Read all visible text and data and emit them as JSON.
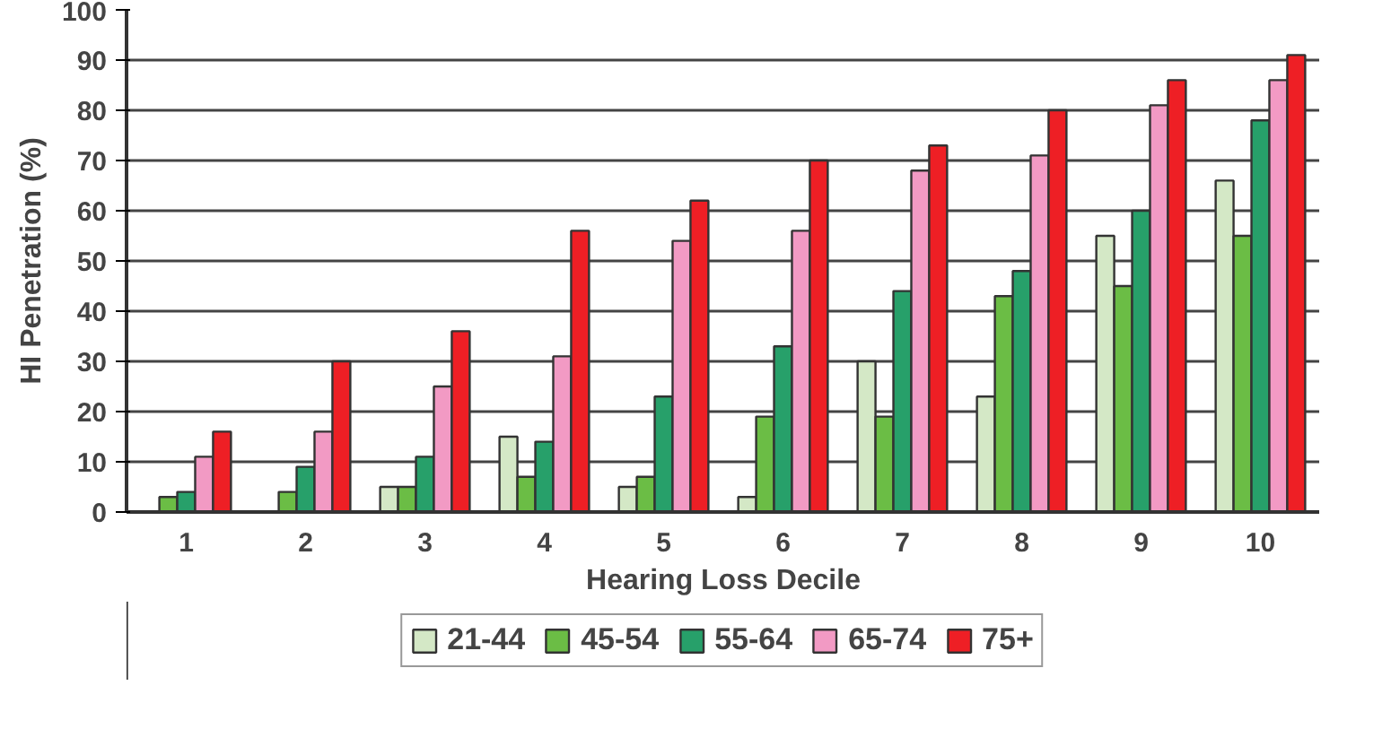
{
  "chart_data": {
    "type": "bar",
    "xlabel": "Hearing Loss Decile",
    "ylabel": "HI Penetration (%)",
    "categories": [
      "1",
      "2",
      "3",
      "4",
      "5",
      "6",
      "7",
      "8",
      "9",
      "10"
    ],
    "series": [
      {
        "name": "21-44",
        "color": "#d4e8c6",
        "values": [
          null,
          null,
          5,
          15,
          5,
          3,
          30,
          23,
          55,
          66
        ]
      },
      {
        "name": "45-54",
        "color": "#6bbd45",
        "values": [
          3,
          4,
          5,
          7,
          7,
          19,
          19,
          43,
          45,
          55
        ]
      },
      {
        "name": "55-64",
        "color": "#27a06a",
        "values": [
          4,
          9,
          11,
          14,
          23,
          33,
          44,
          48,
          60,
          78
        ]
      },
      {
        "name": "65-74",
        "color": "#f29ac4",
        "values": [
          11,
          16,
          25,
          31,
          54,
          56,
          68,
          71,
          81,
          86
        ]
      },
      {
        "name": "75+",
        "color": "#ee1f25",
        "values": [
          16,
          30,
          36,
          56,
          62,
          70,
          73,
          80,
          86,
          91
        ]
      }
    ],
    "ylim": [
      0,
      100
    ],
    "yticks": [
      0,
      10,
      20,
      30,
      40,
      50,
      60,
      70,
      80,
      90,
      100
    ],
    "grid": "y",
    "legend": "bottom"
  }
}
